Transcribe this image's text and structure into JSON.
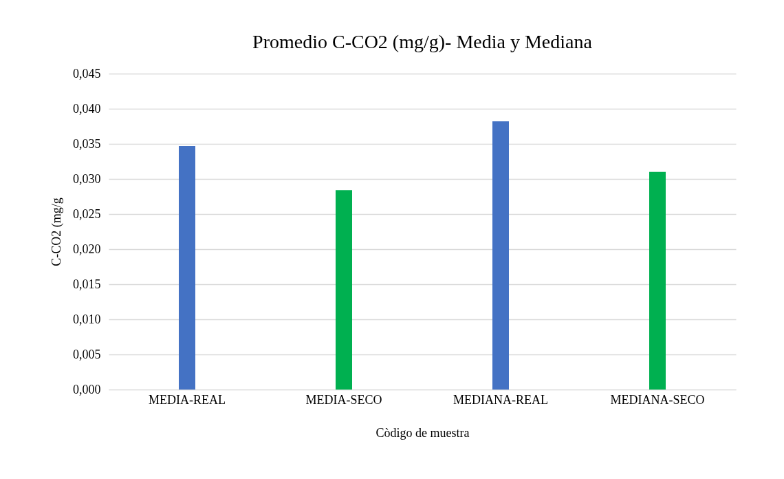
{
  "chart_data": {
    "type": "bar",
    "title": "Promedio C-CO2 (mg/g)- Media y Mediana",
    "xlabel": "Còdigo de muestra",
    "ylabel": "C-CO2 (mg/g",
    "categories": [
      "MEDIA-REAL",
      "MEDIA-SECO",
      "MEDIANA-REAL",
      "MEDIANA-SECO"
    ],
    "values": [
      0.0347,
      0.0284,
      0.0382,
      0.031
    ],
    "colors": [
      "#4472c4",
      "#00b050",
      "#4472c4",
      "#00b050"
    ],
    "ylim": [
      0,
      0.045
    ],
    "yticks": [
      {
        "value": 0,
        "label": "0,000"
      },
      {
        "value": 0.005,
        "label": "0,005"
      },
      {
        "value": 0.01,
        "label": "0,010"
      },
      {
        "value": 0.015,
        "label": "0,015"
      },
      {
        "value": 0.02,
        "label": "0,020"
      },
      {
        "value": 0.025,
        "label": "0,025"
      },
      {
        "value": 0.03,
        "label": "0,030"
      },
      {
        "value": 0.035,
        "label": "0,035"
      },
      {
        "value": 0.04,
        "label": "0,040"
      },
      {
        "value": 0.045,
        "label": "0,045"
      }
    ],
    "grid": "y"
  }
}
